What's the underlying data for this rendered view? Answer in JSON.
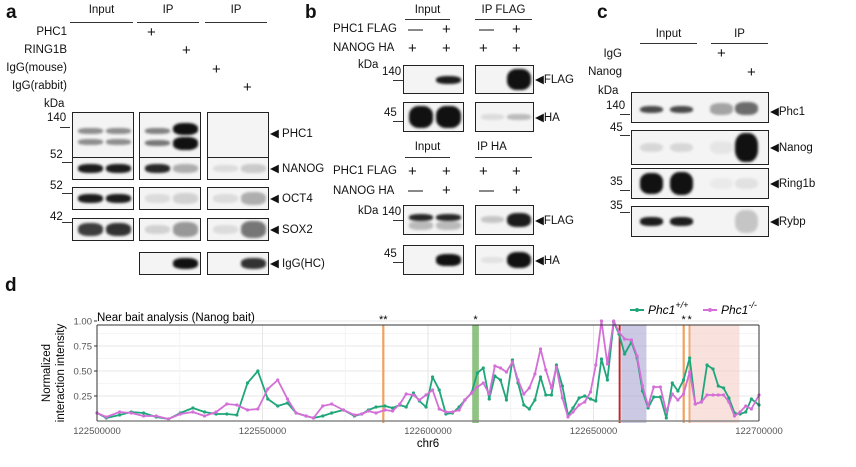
{
  "panel_a": {
    "letter": "a",
    "headers": [
      "Input",
      "IP",
      "IP"
    ],
    "conditions": [
      "PHC1",
      "RING1B",
      "IgG(mouse)",
      "IgG(rabbit)"
    ],
    "sign": "+",
    "kda_label": "kDa",
    "markers": [
      "140",
      "52",
      "52",
      "42"
    ],
    "blot_labels": [
      "PHC1",
      "NANOG",
      "OCT4",
      "SOX2",
      "IgG(HC)"
    ]
  },
  "panel_b": {
    "letter": "b",
    "top_headers": [
      "Input",
      "IP FLAG"
    ],
    "bottom_headers": [
      "Input",
      "IP HA"
    ],
    "conditions": [
      "PHC1 FLAG",
      "NANOG HA"
    ],
    "top_signs": [
      [
        "—",
        "+",
        "—",
        "+"
      ],
      [
        "+",
        "+",
        "+",
        "+"
      ]
    ],
    "bottom_signs": [
      [
        "+",
        "+",
        "+",
        "+"
      ],
      [
        "—",
        "+",
        "—",
        "+"
      ]
    ],
    "kda_label": "kDa",
    "markers": [
      "140",
      "45",
      "140",
      "45"
    ],
    "blot_labels": [
      "FLAG",
      "HA",
      "FLAG",
      "HA"
    ]
  },
  "panel_c": {
    "letter": "c",
    "headers": [
      "Input",
      "IP"
    ],
    "conditions": [
      "IgG",
      "Nanog"
    ],
    "sign": "+",
    "kda_label": "kDa",
    "markers": [
      "140",
      "45",
      "35",
      "35"
    ],
    "blot_labels": [
      "Phc1",
      "Nanog",
      "Ring1b",
      "Rybp"
    ]
  },
  "panel_d": {
    "letter": "d"
  },
  "chart_data": {
    "type": "line",
    "title": "Near bait analysis (Nanog bait)",
    "xlabel": "chr6",
    "ylabel": "Normalized interaction intensity",
    "xlim": [
      122500000,
      122700000
    ],
    "ylim": [
      0,
      1.0
    ],
    "xticks": [
      "122500000",
      "122550000",
      "122600000",
      "122650000",
      "122700000"
    ],
    "yticks": [
      "0.25",
      "0.50",
      "0.75",
      "1.00"
    ],
    "grid": true,
    "legend_position": "top-right",
    "x": [
      122500000,
      122502800,
      122506840,
      122510360,
      122514080,
      122517900,
      122521600,
      122525150,
      122528970,
      122532490,
      122536000,
      122539230,
      122542250,
      122545470,
      122548590,
      122551600,
      122554600,
      122557540,
      122560150,
      122563170,
      122565400,
      122568200,
      122570900,
      122574440,
      122577760,
      122580000,
      122582000,
      122584300,
      122587000,
      122589300,
      122591500,
      122593400,
      122595600,
      122597400,
      122599400,
      122601380,
      122603400,
      122605400,
      122607400,
      122609400,
      122611150,
      122613150,
      122614900,
      122616700,
      122618500,
      122620200,
      122621900,
      122623700,
      122625500,
      122627200,
      122628950,
      122630600,
      122632300,
      122634000,
      122635600,
      122637300,
      122638800,
      122640600,
      122642300,
      122643800,
      122645650,
      122647350,
      122649100,
      122650700,
      122652400,
      122654200,
      122656100,
      122657700,
      122659400,
      122661450,
      122663150,
      122664800,
      122666500,
      122668200,
      122670200,
      122672000,
      122673800,
      122675500,
      122677200,
      122679050,
      122680750,
      122682600,
      122684300,
      122686100,
      122687700,
      122689300,
      122690900,
      122692600,
      122694300,
      122696000,
      122697700,
      122700000
    ],
    "series": [
      {
        "name": "Phc1",
        "superscript": "+/+",
        "color": "#1fa67a",
        "values": [
          0.08,
          0.03,
          0.06,
          0.09,
          0.08,
          0.04,
          0.02,
          0.08,
          0.13,
          0.09,
          0.07,
          0.07,
          0.06,
          0.38,
          0.5,
          0.22,
          0.15,
          0.18,
          0.08,
          0.05,
          0.03,
          0.05,
          0.08,
          0.11,
          0.05,
          0.07,
          0.11,
          0.14,
          0.15,
          0.13,
          0.16,
          0.14,
          0.28,
          0.2,
          0.14,
          0.44,
          0.31,
          0.07,
          0.08,
          0.14,
          0.21,
          0.28,
          0.48,
          0.53,
          0.22,
          0.45,
          0.41,
          0.21,
          0.61,
          0.38,
          0.16,
          0.12,
          0.21,
          0.44,
          0.26,
          0.26,
          0.56,
          0.35,
          0.06,
          0.13,
          0.23,
          0.25,
          0.22,
          0.2,
          0.62,
          0.41,
          0.99,
          0.87,
          0.67,
          0.79,
          0.63,
          0.3,
          0.13,
          0.24,
          0.24,
          0.03,
          0.38,
          0.3,
          0.41,
          0.63,
          0.17,
          0.19,
          0.56,
          0.52,
          0.35,
          0.33,
          0.23,
          0.08,
          0.07,
          0.09,
          0.22,
          0.16
        ]
      },
      {
        "name": "Phc1",
        "superscript": "-/-",
        "color": "#d46fd8",
        "values": [
          0.08,
          0.04,
          0.09,
          0.08,
          0.05,
          0.05,
          0.02,
          0.07,
          0.09,
          0.05,
          0.09,
          0.17,
          0.16,
          0.11,
          0.12,
          0.32,
          0.41,
          0.22,
          0.08,
          0.05,
          0.03,
          0.15,
          0.17,
          0.11,
          0.06,
          0.07,
          0.1,
          0.08,
          0.11,
          0.1,
          0.17,
          0.27,
          0.26,
          0.21,
          0.26,
          0.31,
          0.12,
          0.09,
          0.09,
          0.11,
          0.21,
          0.28,
          0.34,
          0.38,
          0.27,
          0.55,
          0.53,
          0.49,
          0.59,
          0.41,
          0.27,
          0.33,
          0.47,
          0.72,
          0.51,
          0.33,
          0.54,
          0.23,
          0.04,
          0.09,
          0.16,
          0.19,
          0.29,
          0.56,
          1.0,
          0.57,
          1.0,
          0.89,
          0.82,
          0.81,
          0.65,
          0.35,
          0.15,
          0.34,
          0.34,
          0.09,
          0.27,
          0.21,
          0.27,
          0.49,
          0.17,
          0.19,
          0.26,
          0.26,
          0.26,
          0.26,
          0.19,
          0.05,
          0.09,
          0.15,
          0.12,
          0.26
        ]
      }
    ],
    "highlights": [
      {
        "kind": "line",
        "x": 122586500,
        "color": "#f0a060",
        "annotation": "**"
      },
      {
        "kind": "band",
        "x": [
          122613350,
          122615370
        ],
        "color": "#6aae5a",
        "annotation": "*"
      },
      {
        "kind": "line",
        "x": 122657900,
        "color": "#c0282d",
        "annotation": ""
      },
      {
        "kind": "band",
        "x": [
          122658400,
          122666000
        ],
        "color": "#a9a5d2",
        "annotation": ""
      },
      {
        "kind": "line",
        "x": 122677250,
        "color": "#f0a060",
        "annotation": "*"
      },
      {
        "kind": "line",
        "x": 122679050,
        "color": "#f0a060",
        "annotation": "*"
      },
      {
        "kind": "band",
        "x": [
          122679050,
          122694100
        ],
        "color": "#f5cfc6",
        "annotation": ""
      }
    ]
  }
}
